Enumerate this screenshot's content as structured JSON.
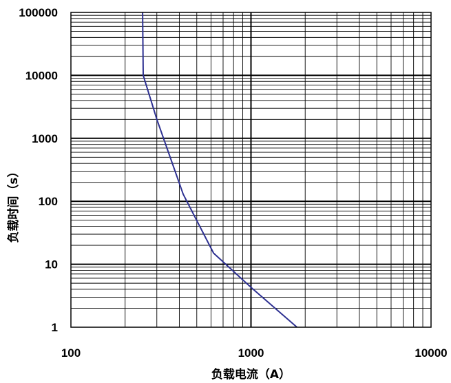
{
  "chart_data": {
    "type": "line",
    "title": "",
    "xlabel": "负载电流（A）",
    "ylabel": "负载时间（s）",
    "xscale": "log",
    "yscale": "log",
    "xlim": [
      100,
      10000
    ],
    "ylim": [
      1,
      100000
    ],
    "x_tick_labels": [
      "100",
      "1000",
      "10000"
    ],
    "y_tick_labels": [
      "1",
      "10",
      "100",
      "1000",
      "10000",
      "100000"
    ],
    "grid": true,
    "legend": "none",
    "series": [
      {
        "color": "#2e3192",
        "points": [
          {
            "x": 250,
            "y": 100000
          },
          {
            "x": 252,
            "y": 10000
          },
          {
            "x": 300,
            "y": 2000
          },
          {
            "x": 420,
            "y": 130
          },
          {
            "x": 620,
            "y": 15
          },
          {
            "x": 1000,
            "y": 4.3
          },
          {
            "x": 1800,
            "y": 1
          }
        ]
      }
    ]
  }
}
